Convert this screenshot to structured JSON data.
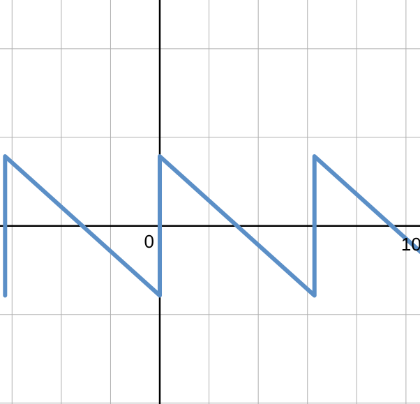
{
  "chart_data": {
    "type": "line",
    "title": "",
    "xlabel": "",
    "ylabel": "",
    "xlim": [
      -6.49,
      10.57
    ],
    "ylim": [
      -4.02,
      5.1
    ],
    "grid": true,
    "grid_step": {
      "x": 2,
      "y": 2
    },
    "x_tick_labels": [
      {
        "value": 0,
        "label": "0"
      },
      {
        "value": 10,
        "label": "10"
      }
    ],
    "series": [
      {
        "color": "#5b8fc7",
        "points": [
          [
            -6.283,
            -1.571
          ],
          [
            -6.283,
            1.571
          ],
          [
            0,
            -1.571
          ],
          [
            0,
            1.571
          ],
          [
            6.283,
            -1.571
          ],
          [
            6.283,
            1.571
          ],
          [
            10.6,
            -0.588
          ]
        ]
      }
    ],
    "colors": {
      "grid": "#b0b0b0",
      "axis": "#000000",
      "curve": "#5b8fc7"
    }
  }
}
